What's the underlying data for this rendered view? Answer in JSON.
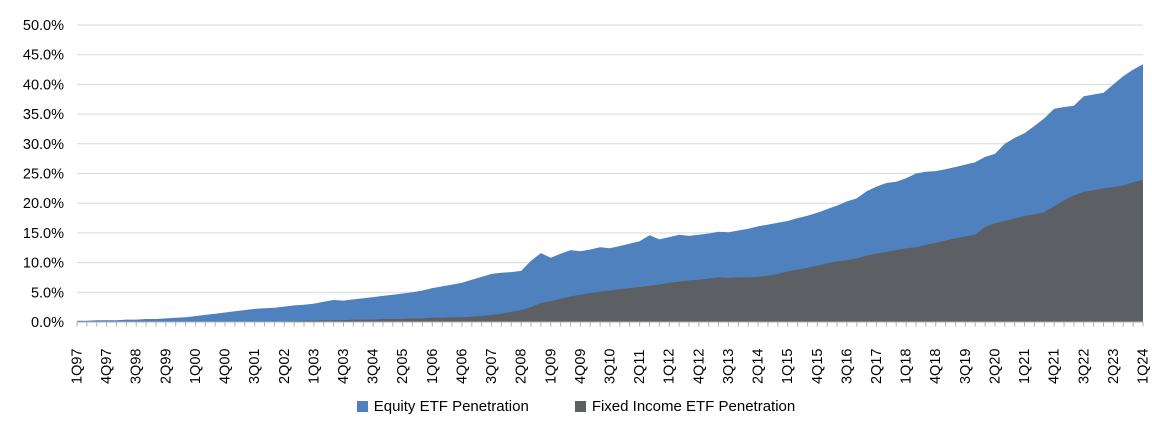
{
  "chart_data": {
    "type": "area",
    "title": "",
    "unit": "%",
    "ylim": [
      0,
      50
    ],
    "ytick_labels": [
      "0.0%",
      "5.0%",
      "10.0%",
      "15.0%",
      "20.0%",
      "25.0%",
      "30.0%",
      "35.0%",
      "40.0%",
      "45.0%",
      "50.0%"
    ],
    "xtick_every": 3,
    "grid": true,
    "legend_position": "bottom",
    "colors": {
      "grid": "#D9D9D9",
      "axis": "#AFAFAF",
      "text": "#000000",
      "background": "#FFFFFF"
    },
    "x": [
      "1Q97",
      "2Q97",
      "3Q97",
      "4Q97",
      "1Q98",
      "2Q98",
      "3Q98",
      "4Q98",
      "1Q99",
      "2Q99",
      "3Q99",
      "4Q99",
      "1Q00",
      "2Q00",
      "3Q00",
      "4Q00",
      "1Q01",
      "2Q01",
      "3Q01",
      "4Q01",
      "1Q02",
      "2Q02",
      "3Q02",
      "4Q02",
      "1Q03",
      "2Q03",
      "3Q03",
      "4Q03",
      "1Q04",
      "2Q04",
      "3Q04",
      "4Q04",
      "1Q05",
      "2Q05",
      "3Q05",
      "4Q05",
      "1Q06",
      "2Q06",
      "3Q06",
      "4Q06",
      "1Q07",
      "2Q07",
      "3Q07",
      "4Q07",
      "1Q08",
      "2Q08",
      "3Q08",
      "4Q08",
      "1Q09",
      "2Q09",
      "3Q09",
      "4Q09",
      "1Q10",
      "2Q10",
      "3Q10",
      "4Q10",
      "1Q11",
      "2Q11",
      "3Q11",
      "4Q11",
      "1Q12",
      "2Q12",
      "3Q12",
      "4Q12",
      "1Q13",
      "2Q13",
      "3Q13",
      "4Q13",
      "1Q14",
      "2Q14",
      "3Q14",
      "4Q14",
      "1Q15",
      "2Q15",
      "3Q15",
      "4Q15",
      "1Q16",
      "2Q16",
      "3Q16",
      "4Q16",
      "1Q17",
      "2Q17",
      "3Q17",
      "4Q17",
      "1Q18",
      "2Q18",
      "3Q18",
      "4Q18",
      "1Q19",
      "2Q19",
      "3Q19",
      "4Q19",
      "1Q20",
      "2Q20",
      "3Q20",
      "4Q20",
      "1Q21",
      "2Q21",
      "3Q21",
      "4Q21",
      "1Q22",
      "2Q22",
      "3Q22",
      "4Q22",
      "1Q23",
      "2Q23",
      "3Q23",
      "4Q23",
      "1Q24"
    ],
    "series": [
      {
        "name": "Equity ETF Penetration",
        "color": "#4E81BD",
        "values": [
          0.2,
          0.2,
          0.3,
          0.3,
          0.3,
          0.4,
          0.4,
          0.5,
          0.5,
          0.6,
          0.7,
          0.8,
          1.0,
          1.2,
          1.4,
          1.6,
          1.8,
          2.0,
          2.2,
          2.3,
          2.4,
          2.6,
          2.8,
          2.9,
          3.1,
          3.4,
          3.7,
          3.6,
          3.8,
          4.0,
          4.2,
          4.4,
          4.6,
          4.8,
          5.0,
          5.3,
          5.7,
          6.0,
          6.3,
          6.6,
          7.1,
          7.6,
          8.1,
          8.3,
          8.4,
          8.6,
          10.3,
          11.6,
          10.8,
          11.5,
          12.1,
          11.9,
          12.2,
          12.6,
          12.4,
          12.8,
          13.2,
          13.6,
          14.6,
          13.9,
          14.3,
          14.7,
          14.5,
          14.7,
          14.9,
          15.2,
          15.1,
          15.4,
          15.7,
          16.1,
          16.4,
          16.7,
          17.0,
          17.5,
          17.9,
          18.4,
          19.0,
          19.6,
          20.3,
          20.8,
          22.0,
          22.8,
          23.4,
          23.6,
          24.2,
          25.0,
          25.3,
          25.4,
          25.7,
          26.1,
          26.5,
          26.9,
          27.8,
          28.3,
          30.0,
          31.0,
          31.8,
          33.0,
          34.3,
          35.9,
          36.2,
          36.4,
          38.0,
          38.3,
          38.6,
          40.0,
          41.4,
          42.5,
          43.4
        ]
      },
      {
        "name": "Fixed Income ETF Penetration",
        "color": "#5C5F64",
        "values": [
          0,
          0,
          0,
          0,
          0,
          0,
          0,
          0,
          0,
          0,
          0,
          0,
          0,
          0,
          0,
          0,
          0,
          0,
          0,
          0,
          0,
          0.1,
          0.1,
          0.2,
          0.2,
          0.3,
          0.3,
          0.3,
          0.4,
          0.4,
          0.4,
          0.5,
          0.5,
          0.5,
          0.6,
          0.6,
          0.7,
          0.7,
          0.8,
          0.8,
          0.9,
          1.0,
          1.2,
          1.4,
          1.7,
          2.0,
          2.5,
          3.2,
          3.5,
          3.9,
          4.3,
          4.6,
          4.9,
          5.1,
          5.3,
          5.5,
          5.7,
          5.9,
          6.1,
          6.3,
          6.6,
          6.8,
          7.0,
          7.1,
          7.3,
          7.5,
          7.4,
          7.5,
          7.5,
          7.6,
          7.8,
          8.1,
          8.5,
          8.8,
          9.1,
          9.5,
          9.9,
          10.2,
          10.4,
          10.7,
          11.2,
          11.5,
          11.8,
          12.1,
          12.4,
          12.6,
          13.0,
          13.3,
          13.7,
          14.1,
          14.4,
          14.7,
          16.0,
          16.6,
          17.0,
          17.4,
          17.9,
          18.1,
          18.5,
          19.5,
          20.5,
          21.3,
          21.9,
          22.2,
          22.5,
          22.7,
          23.0,
          23.5,
          23.9
        ]
      }
    ]
  }
}
